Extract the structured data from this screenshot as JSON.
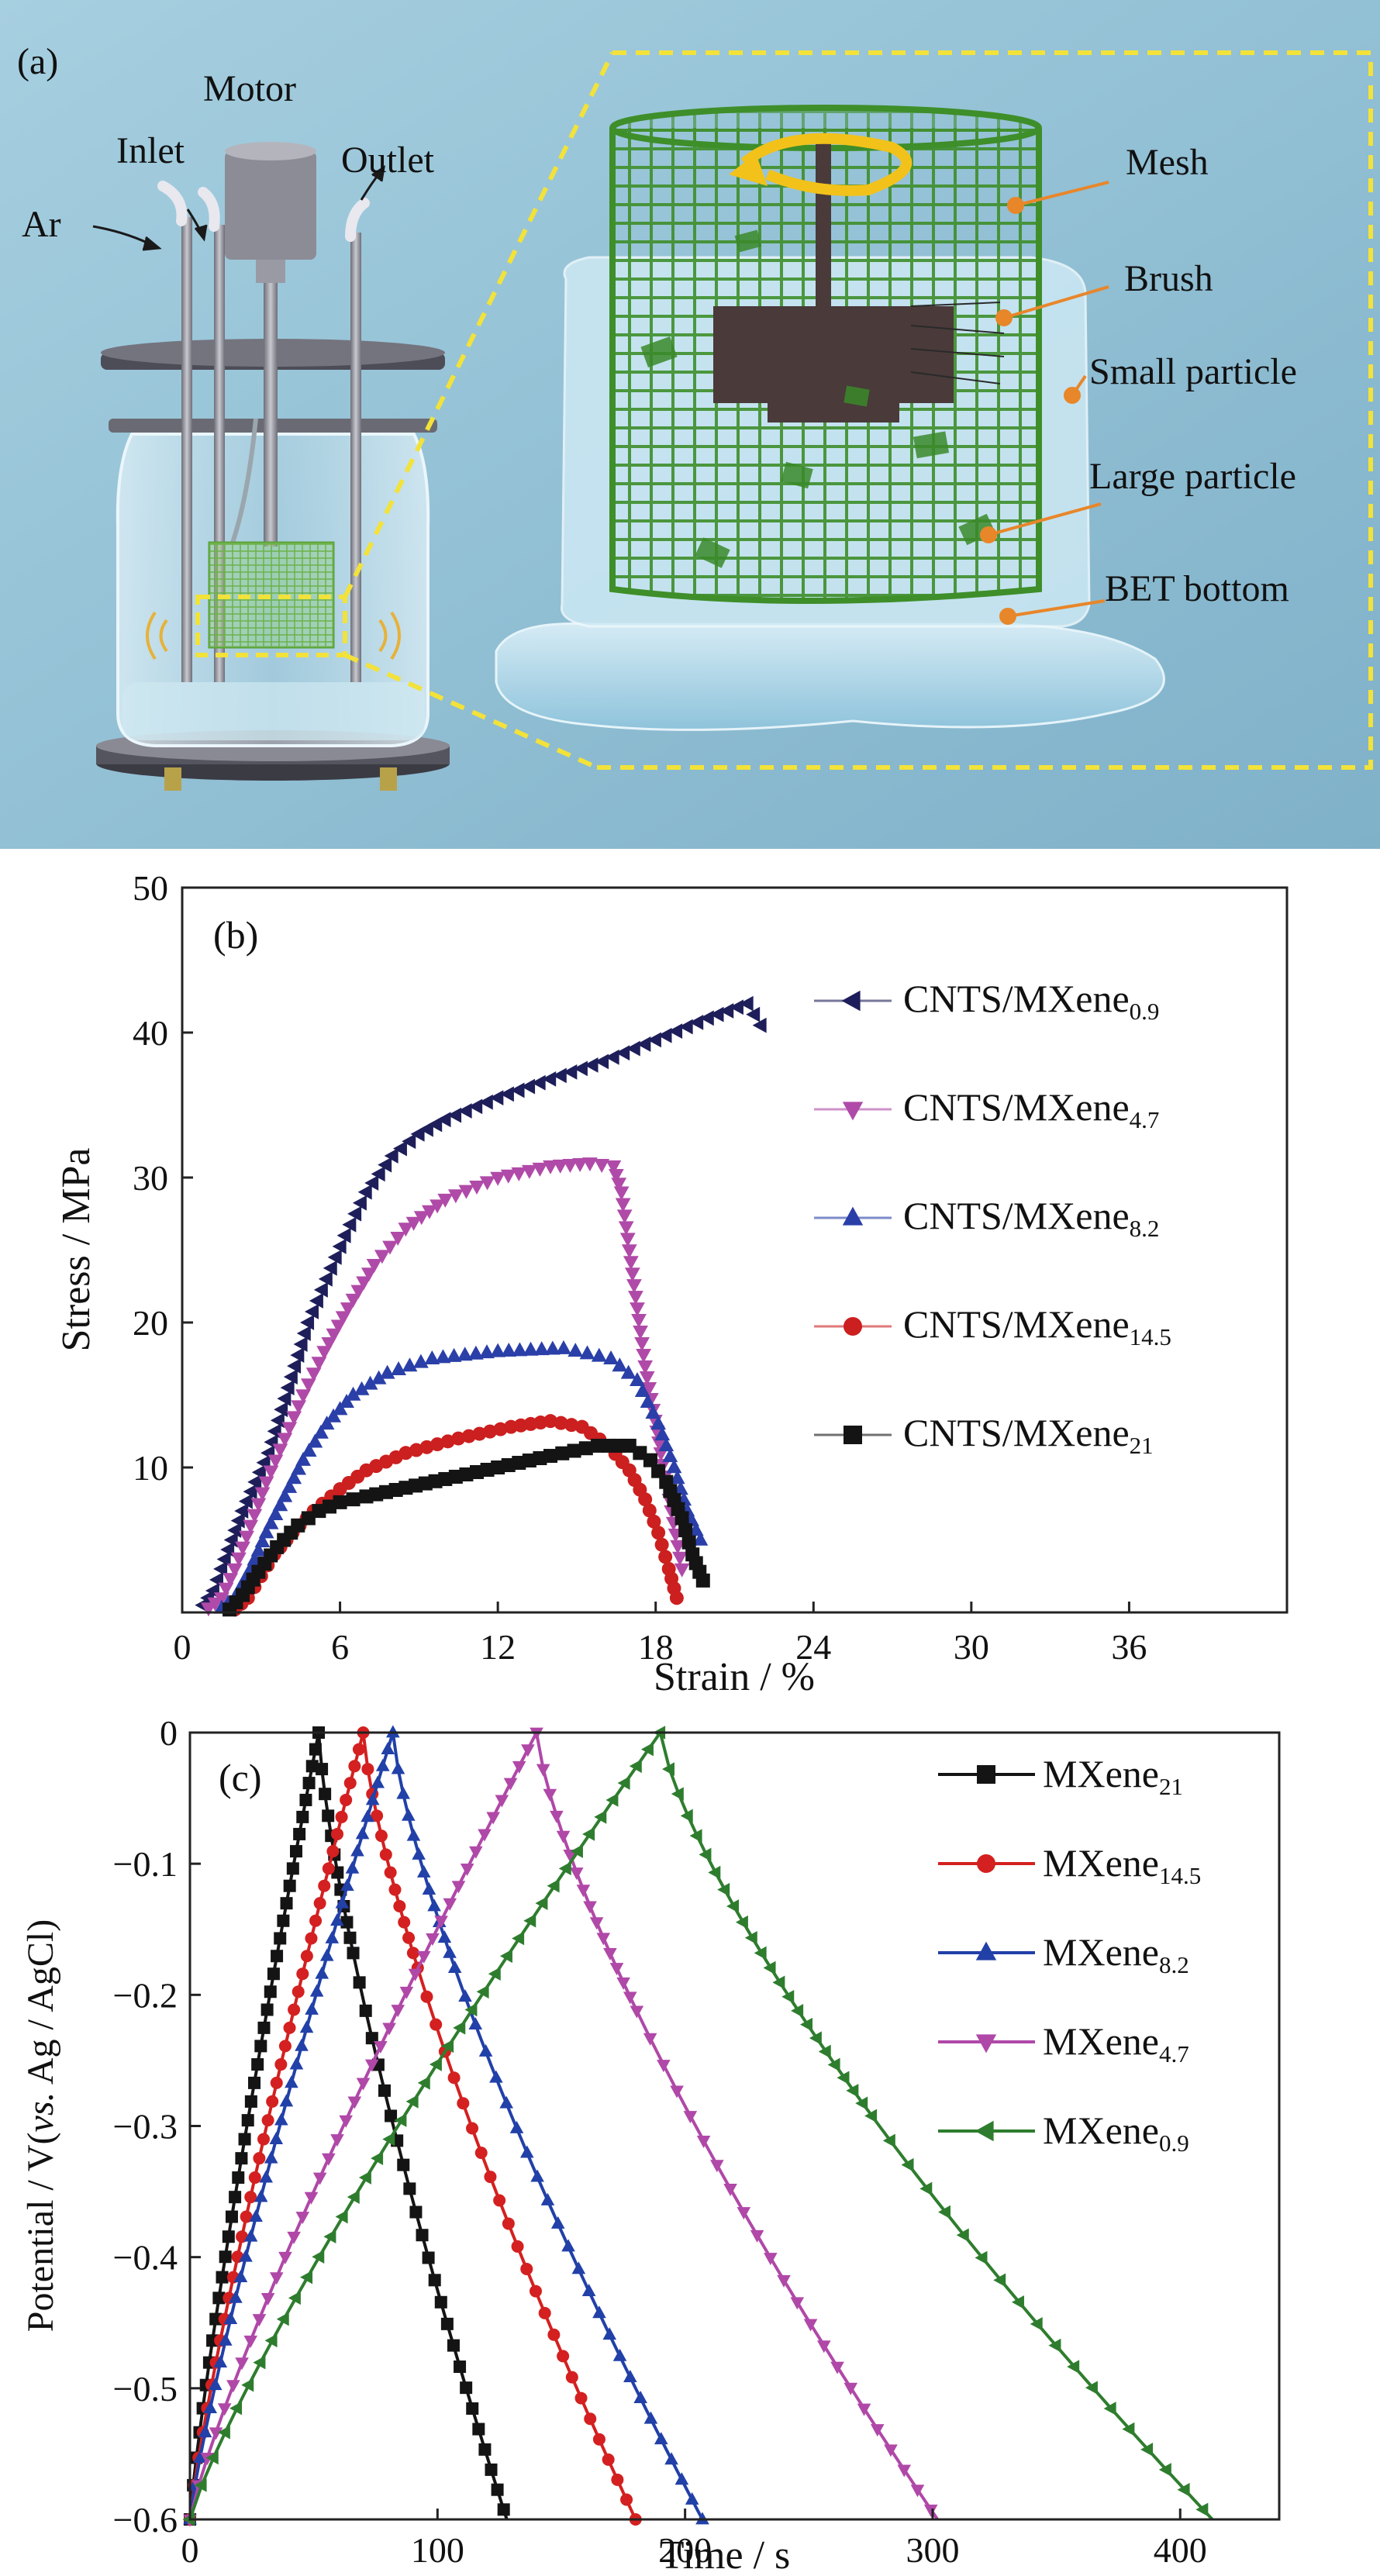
{
  "panel_a": {
    "panel_label": "(a)",
    "labels": {
      "ar": "Ar",
      "inlet": "Inlet",
      "motor": "Motor",
      "outlet": "Outlet",
      "mesh": "Mesh",
      "brush": "Brush",
      "small_particle": "Small particle",
      "large_particle": "Large particle",
      "bet_bottom": "BET bottom"
    },
    "colors": {
      "background": "#9ec7db",
      "mesh": "#3f8f2e",
      "leader": "#e8862a",
      "dash": "#f2e23a"
    }
  },
  "chart_data": [
    {
      "type": "scatter",
      "panel_label": "(b)",
      "xlabel": "Strain / %",
      "ylabel": "Stress / MPa",
      "xlim": [
        0,
        42
      ],
      "ylim": [
        0,
        50
      ],
      "xticks": [
        0,
        6,
        12,
        18,
        24,
        30,
        36
      ],
      "yticks": [
        10,
        20,
        30,
        40,
        50
      ],
      "legend_position": "right",
      "series": [
        {
          "name": "CNTS/MXene",
          "sub": "0.9",
          "marker": "tri-left",
          "color": "#1e1e5a",
          "points": [
            [
              0.8,
              0.5
            ],
            [
              1.2,
              1.5
            ],
            [
              1.5,
              3
            ],
            [
              1.9,
              5
            ],
            [
              2.3,
              7
            ],
            [
              2.8,
              9
            ],
            [
              3.3,
              11
            ],
            [
              3.8,
              14
            ],
            [
              4.3,
              17
            ],
            [
              4.8,
              20
            ],
            [
              5.5,
              23
            ],
            [
              6.2,
              26
            ],
            [
              7,
              29
            ],
            [
              8,
              31.5
            ],
            [
              9,
              33
            ],
            [
              10,
              34
            ],
            [
              12,
              35.5
            ],
            [
              14,
              36.8
            ],
            [
              16,
              38
            ],
            [
              18,
              39.5
            ],
            [
              20,
              41
            ],
            [
              21.5,
              42
            ],
            [
              22,
              40.5
            ]
          ]
        },
        {
          "name": "CNTS/MXene",
          "sub": "4.7",
          "marker": "tri-down",
          "color": "#b04aa8",
          "points": [
            [
              1,
              0.3
            ],
            [
              1.5,
              1
            ],
            [
              2,
              3
            ],
            [
              2.6,
              6
            ],
            [
              3.2,
              9
            ],
            [
              3.9,
              12
            ],
            [
              4.6,
              15
            ],
            [
              5.4,
              18
            ],
            [
              6.3,
              21
            ],
            [
              7.3,
              24
            ],
            [
              8.5,
              26.5
            ],
            [
              10,
              28.5
            ],
            [
              12,
              30
            ],
            [
              14,
              30.8
            ],
            [
              15.5,
              31
            ],
            [
              16.4,
              30.8
            ],
            [
              16.7,
              29
            ],
            [
              17,
              25
            ],
            [
              17.3,
              21
            ],
            [
              17.6,
              17
            ],
            [
              17.9,
              14
            ],
            [
              18.2,
              11
            ],
            [
              18.6,
              7
            ],
            [
              19,
              3
            ]
          ]
        },
        {
          "name": "CNTS/MXene",
          "sub": "8.2",
          "marker": "tri-up",
          "color": "#2a3fa8",
          "points": [
            [
              1.5,
              0.3
            ],
            [
              2,
              1
            ],
            [
              2.6,
              3
            ],
            [
              3.2,
              5.5
            ],
            [
              3.9,
              8
            ],
            [
              4.6,
              10.5
            ],
            [
              5.5,
              13
            ],
            [
              6.5,
              15
            ],
            [
              7.8,
              16.5
            ],
            [
              9.5,
              17.5
            ],
            [
              12,
              18
            ],
            [
              14.5,
              18.2
            ],
            [
              16.3,
              17.5
            ],
            [
              17.3,
              16
            ],
            [
              18.1,
              13
            ],
            [
              18.7,
              10
            ],
            [
              19.2,
              7
            ],
            [
              19.7,
              5
            ]
          ]
        },
        {
          "name": "CNTS/MXene",
          "sub": "14.5",
          "marker": "circle",
          "color": "#cc1f1f",
          "points": [
            [
              2,
              0.2
            ],
            [
              2.5,
              1
            ],
            [
              3,
              2.5
            ],
            [
              3.5,
              4
            ],
            [
              4.2,
              5.5
            ],
            [
              5,
              7
            ],
            [
              6,
              8.5
            ],
            [
              7,
              9.8
            ],
            [
              8.5,
              11
            ],
            [
              10.5,
              12
            ],
            [
              12.5,
              12.8
            ],
            [
              14,
              13.2
            ],
            [
              15.2,
              12.8
            ],
            [
              16.2,
              11.5
            ],
            [
              17,
              9.8
            ],
            [
              17.6,
              7.8
            ],
            [
              18.1,
              5.5
            ],
            [
              18.5,
              3
            ],
            [
              18.8,
              1
            ]
          ]
        },
        {
          "name": "CNTS/MXene",
          "sub": "21",
          "marker": "square",
          "color": "#141414",
          "points": [
            [
              1.8,
              0.2
            ],
            [
              2.3,
              1.2
            ],
            [
              2.9,
              2.8
            ],
            [
              3.6,
              4.5
            ],
            [
              4.4,
              6
            ],
            [
              5.2,
              7
            ],
            [
              6,
              7.6
            ],
            [
              7,
              8
            ],
            [
              8.5,
              8.6
            ],
            [
              10,
              9.2
            ],
            [
              12,
              10
            ],
            [
              14,
              10.8
            ],
            [
              15.8,
              11.5
            ],
            [
              17,
              11.5
            ],
            [
              17.8,
              10.5
            ],
            [
              18.4,
              9
            ],
            [
              19,
              6.5
            ],
            [
              19.4,
              4
            ],
            [
              19.8,
              2.2
            ]
          ]
        }
      ]
    },
    {
      "type": "line",
      "panel_label": "(c)",
      "xlabel": "Time / s",
      "ylabel_pre": "Potential / V(",
      "ylabel_italic": "vs.",
      "ylabel_post": " Ag / AgCl)",
      "xlim": [
        0,
        440
      ],
      "ylim": [
        -0.6,
        0
      ],
      "xticks": [
        0,
        100,
        200,
        300,
        400
      ],
      "yticks": [
        0,
        -0.1,
        -0.2,
        -0.3,
        -0.4,
        -0.5,
        -0.6
      ],
      "ytick_labels": [
        "0",
        "−0.1",
        "−0.2",
        "−0.3",
        "−0.4",
        "−0.5",
        "−0.6"
      ],
      "legend_position": "top-right",
      "series": [
        {
          "name": "MXene",
          "sub": "21",
          "marker": "square",
          "color": "#141414",
          "peak": [
            52,
            0
          ],
          "end": [
            128,
            -0.6
          ]
        },
        {
          "name": "MXene",
          "sub": "14.5",
          "marker": "circle",
          "color": "#d42020",
          "peak": [
            70,
            0
          ],
          "end": [
            180,
            -0.6
          ]
        },
        {
          "name": "MXene",
          "sub": "8.2",
          "marker": "tri-up",
          "color": "#2140a8",
          "peak": [
            82,
            0
          ],
          "end": [
            207,
            -0.6
          ]
        },
        {
          "name": "MXene",
          "sub": "4.7",
          "marker": "tri-down",
          "color": "#b048a8",
          "peak": [
            140,
            0
          ],
          "end": [
            302,
            -0.6
          ]
        },
        {
          "name": "MXene",
          "sub": "0.9",
          "marker": "tri-left",
          "color": "#2e7d2e",
          "peak": [
            190,
            0
          ],
          "end": [
            413,
            -0.6
          ]
        }
      ]
    }
  ]
}
